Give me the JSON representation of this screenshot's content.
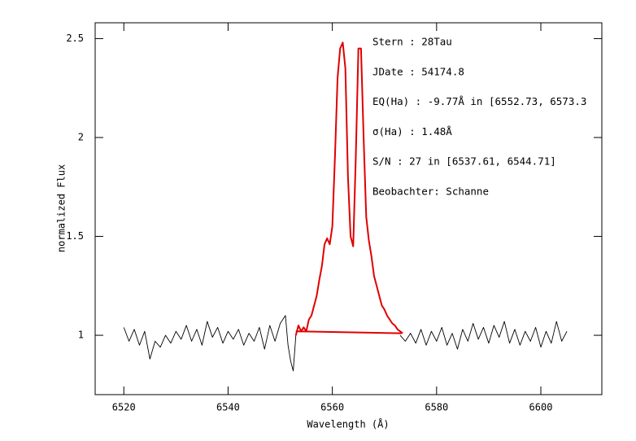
{
  "chart_data": {
    "type": "line",
    "xlabel": "Wavelength (Å)",
    "ylabel": "normalized Flux",
    "xlim": [
      6514.5,
      6611.7
    ],
    "ylim": [
      0.7,
      2.58
    ],
    "xticks": [
      6520,
      6540,
      6560,
      6580,
      6600
    ],
    "yticks": [
      1,
      1.5,
      2,
      2.5
    ],
    "annotations": [
      "Stern   : 28Tau",
      "JDate   : 54174.8",
      "EQ(Ha) : -9.77Å in [6552.73, 6573.3",
      "σ(Ha)   : 1.48Å",
      "S/N     : 27 in [6537.61, 6544.71]",
      "Beobachter: Schanne"
    ],
    "series": [
      {
        "color": "#000000",
        "x": [
          6520,
          6521,
          6522,
          6523,
          6524,
          6525,
          6526,
          6527,
          6528,
          6529,
          6530,
          6531,
          6532,
          6533,
          6534,
          6535,
          6536,
          6537,
          6538,
          6539,
          6540,
          6541,
          6542,
          6543,
          6544,
          6545,
          6546,
          6547,
          6548,
          6549,
          6550,
          6551,
          6551.5,
          6552,
          6552.5,
          6553
        ],
        "values": [
          1.04,
          0.97,
          1.03,
          0.95,
          1.02,
          0.88,
          0.97,
          0.94,
          1.0,
          0.96,
          1.02,
          0.98,
          1.05,
          0.97,
          1.03,
          0.95,
          1.07,
          0.99,
          1.04,
          0.96,
          1.02,
          0.98,
          1.03,
          0.95,
          1.01,
          0.97,
          1.04,
          0.93,
          1.05,
          0.97,
          1.06,
          1.1,
          0.95,
          0.87,
          0.82,
          1.0
        ]
      },
      {
        "color": "#000000",
        "x": [
          6573,
          6574,
          6575,
          6576,
          6577,
          6578,
          6579,
          6580,
          6581,
          6582,
          6583,
          6584,
          6585,
          6586,
          6587,
          6588,
          6589,
          6590,
          6591,
          6592,
          6593,
          6594,
          6595,
          6596,
          6597,
          6598,
          6599,
          6600,
          6601,
          6602,
          6603,
          6604,
          6605
        ],
        "values": [
          1.0,
          0.97,
          1.01,
          0.96,
          1.03,
          0.95,
          1.02,
          0.97,
          1.04,
          0.95,
          1.01,
          0.93,
          1.03,
          0.97,
          1.06,
          0.98,
          1.04,
          0.96,
          1.05,
          0.99,
          1.07,
          0.96,
          1.03,
          0.95,
          1.02,
          0.97,
          1.04,
          0.94,
          1.02,
          0.96,
          1.07,
          0.97,
          1.02
        ]
      },
      {
        "color": "#e00000",
        "x": [
          6553,
          6553.5,
          6554,
          6554.5,
          6555,
          6555.5,
          6556,
          6556.5,
          6557,
          6557.5,
          6558,
          6558.5,
          6559,
          6559.5,
          6560,
          6560.5,
          6561,
          6561.5,
          6562,
          6562.5,
          6563,
          6563.5,
          6564,
          6564.5,
          6565,
          6565.5,
          6566,
          6566.5,
          6567,
          6567.5,
          6568,
          6568.5,
          6569,
          6569.5,
          6570,
          6570.5,
          6571,
          6571.5,
          6572,
          6572.5,
          6573,
          6573.5
        ],
        "values": [
          1.0,
          1.05,
          1.02,
          1.04,
          1.02,
          1.08,
          1.1,
          1.15,
          1.2,
          1.28,
          1.35,
          1.46,
          1.49,
          1.46,
          1.55,
          1.9,
          2.3,
          2.45,
          2.48,
          2.35,
          1.8,
          1.5,
          1.45,
          1.9,
          2.45,
          2.45,
          2.0,
          1.6,
          1.48,
          1.4,
          1.3,
          1.25,
          1.2,
          1.15,
          1.13,
          1.1,
          1.08,
          1.06,
          1.05,
          1.03,
          1.02,
          1.01
        ]
      },
      {
        "color": "#e00000",
        "x": [
          6553,
          6573.3
        ],
        "values": [
          1.02,
          1.01
        ]
      }
    ]
  }
}
